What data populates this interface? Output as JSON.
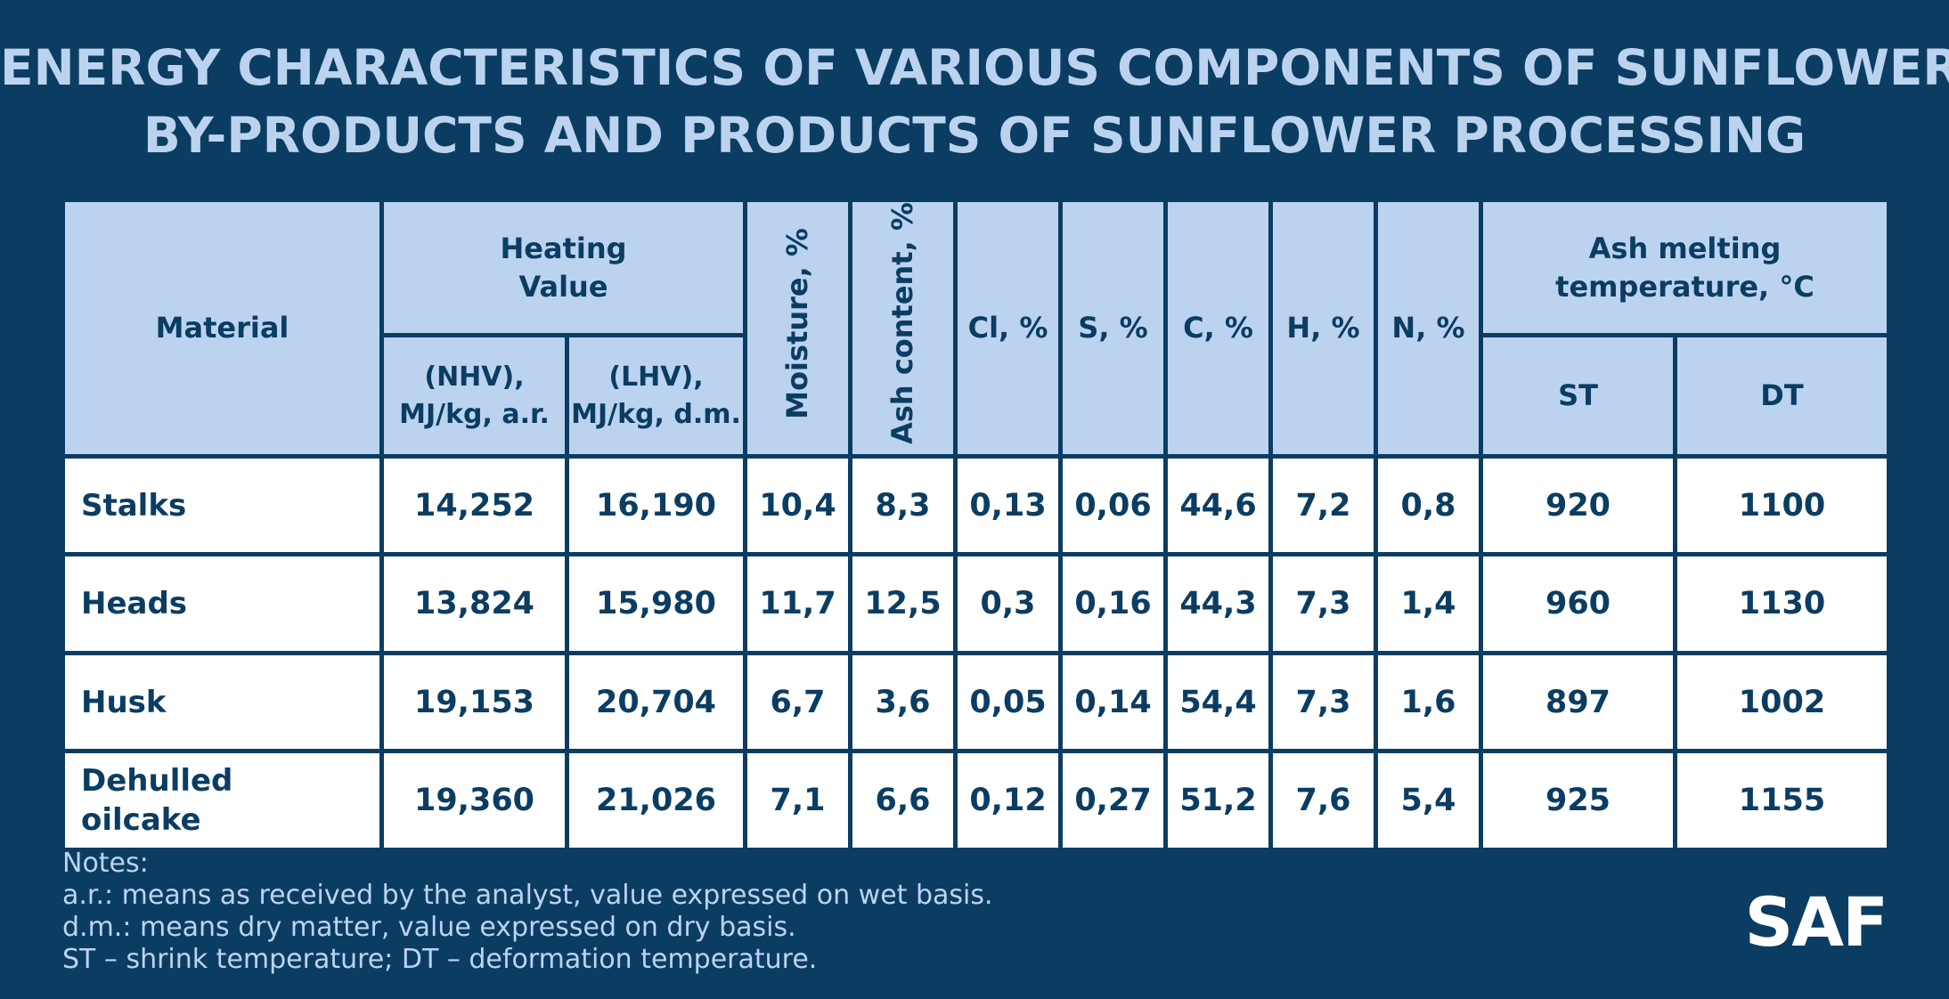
{
  "title_line1": "ENERGY CHARACTERISTICS OF VARIOUS COMPONENTS OF SUNFLOWER",
  "title_line2": "BY-PRODUCTS AND PRODUCTS OF SUNFLOWER PROCESSING",
  "header": {
    "material": "Material",
    "heating_value": "Heating Value",
    "nhv": "(NHV), MJ/kg, a.r.",
    "lhv": "(LHV), MJ/kg, d.m.",
    "moisture": "Moisture, %",
    "ash_content": "Ash content, %",
    "cl": "Cl, %",
    "s": "S, %",
    "c": "C, %",
    "h": "H, %",
    "n": "N, %",
    "ash_melting": "Ash melting temperature, °C",
    "st": "ST",
    "dt": "DT"
  },
  "chart_data": {
    "type": "table",
    "title": "ENERGY CHARACTERISTICS OF VARIOUS COMPONENTS OF SUNFLOWER BY-PRODUCTS AND PRODUCTS OF SUNFLOWER PROCESSING",
    "columns": [
      "Material",
      "(NHV), MJ/kg, a.r.",
      "(LHV), MJ/kg, d.m.",
      "Moisture, %",
      "Ash content, %",
      "Cl, %",
      "S, %",
      "C, %",
      "H, %",
      "N, %",
      "ST",
      "DT"
    ],
    "rows": [
      [
        "Stalks",
        "14,252",
        "16,190",
        "10,4",
        "8,3",
        "0,13",
        "0,06",
        "44,6",
        "7,2",
        "0,8",
        "920",
        "1100"
      ],
      [
        "Heads",
        "13,824",
        "15,980",
        "11,7",
        "12,5",
        "0,3",
        "0,16",
        "44,3",
        "7,3",
        "1,4",
        "960",
        "1130"
      ],
      [
        "Husk",
        "19,153",
        "20,704",
        "6,7",
        "3,6",
        "0,05",
        "0,14",
        "54,4",
        "7,3",
        "1,6",
        "897",
        "1002"
      ],
      [
        "Dehulled oilcake",
        "19,360",
        "21,026",
        "7,1",
        "6,6",
        "0,12",
        "0,27",
        "51,2",
        "7,6",
        "5,4",
        "925",
        "1155"
      ]
    ]
  },
  "notes": {
    "heading": "Notes:",
    "line1": "a.r.: means as received by the analyst, value expressed on wet basis.",
    "line2": "d.m.: means dry matter, value expressed on dry basis.",
    "line3": "ST – shrink temperature; DT – deformation temperature."
  },
  "logo": "SAF"
}
